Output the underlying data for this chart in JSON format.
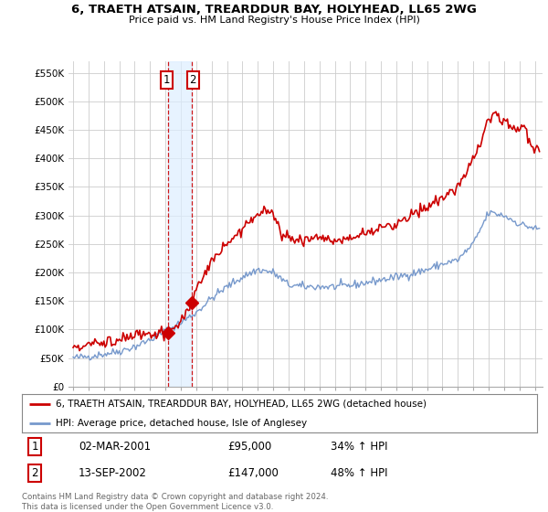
{
  "title": "6, TRAETH ATSAIN, TREARDDUR BAY, HOLYHEAD, LL65 2WG",
  "subtitle": "Price paid vs. HM Land Registry's House Price Index (HPI)",
  "ylabel_ticks": [
    "£0",
    "£50K",
    "£100K",
    "£150K",
    "£200K",
    "£250K",
    "£300K",
    "£350K",
    "£400K",
    "£450K",
    "£500K",
    "£550K"
  ],
  "ytick_values": [
    0,
    50000,
    100000,
    150000,
    200000,
    250000,
    300000,
    350000,
    400000,
    450000,
    500000,
    550000
  ],
  "ylim": [
    0,
    570000
  ],
  "xlim_start": 1994.7,
  "xlim_end": 2025.5,
  "red_line_color": "#cc0000",
  "blue_line_color": "#7799cc",
  "transaction1_x": 2001.17,
  "transaction1_y": 95000,
  "transaction2_x": 2002.71,
  "transaction2_y": 147000,
  "transaction1_date": "02-MAR-2001",
  "transaction1_price": "£95,000",
  "transaction1_hpi": "34% ↑ HPI",
  "transaction2_date": "13-SEP-2002",
  "transaction2_price": "£147,000",
  "transaction2_hpi": "48% ↑ HPI",
  "legend_label1": "6, TRAETH ATSAIN, TREARDDUR BAY, HOLYHEAD, LL65 2WG (detached house)",
  "legend_label2": "HPI: Average price, detached house, Isle of Anglesey",
  "footer": "Contains HM Land Registry data © Crown copyright and database right 2024.\nThis data is licensed under the Open Government Licence v3.0.",
  "background_color": "#ffffff",
  "grid_color": "#cccccc",
  "vline_color": "#cc0000",
  "vshade_color": "#ddeeff",
  "title_fontsize": 9.5,
  "subtitle_fontsize": 8.0
}
